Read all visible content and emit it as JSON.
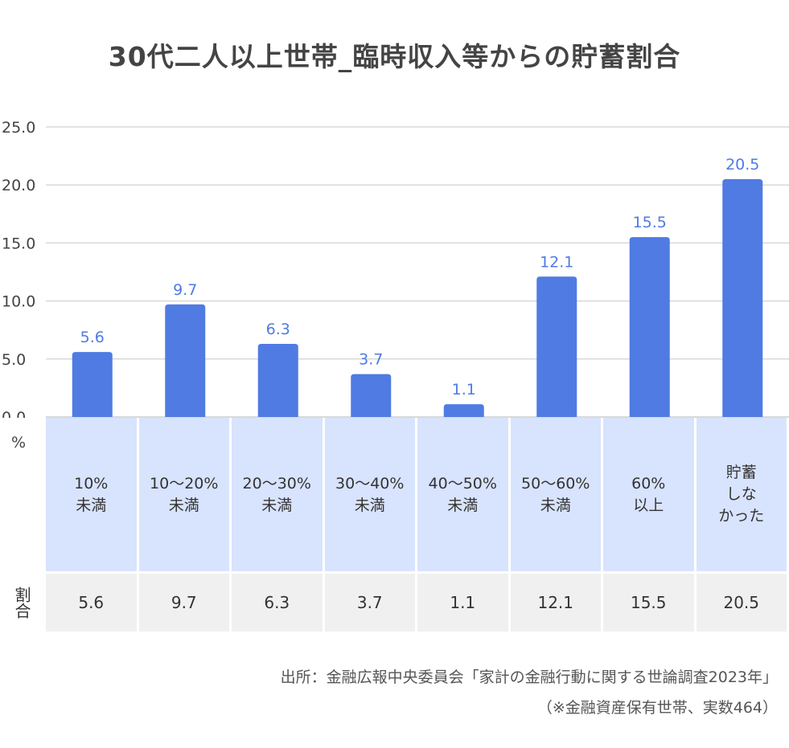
{
  "title": "30代二人以上世帯_臨時収入等からの貯蓄割合",
  "chart_data": {
    "type": "bar",
    "title": "30代二人以上世帯_臨時収入等からの貯蓄割合",
    "categories": [
      "10%\n未満",
      "10〜20%\n未満",
      "20〜30%\n未満",
      "30〜40%\n未満",
      "40〜50%\n未満",
      "50〜60%\n未満",
      "60%\n以上",
      "貯蓄\nしな\nかった"
    ],
    "values": [
      5.6,
      9.7,
      6.3,
      3.7,
      1.1,
      12.1,
      15.5,
      20.5
    ],
    "value_labels": [
      "5.6",
      "9.7",
      "6.3",
      "3.7",
      "1.1",
      "12.1",
      "15.5",
      "20.5"
    ],
    "ylim": [
      0,
      25
    ],
    "yticks": [
      "0.0",
      "5.0",
      "10.0",
      "15.0",
      "20.0",
      "25.0"
    ],
    "ylabel": "%",
    "grid": true,
    "bar_color": "#4f7be3"
  },
  "table": {
    "row_label": "割合",
    "values": [
      "5.6",
      "9.7",
      "6.3",
      "3.7",
      "1.1",
      "12.1",
      "15.5",
      "20.5"
    ]
  },
  "source": {
    "line1": "出所：金融広報中央委員会「家計の金融行動に関する世論調査2023年」",
    "line2": "（※金融資産保有世帯、実数464）"
  },
  "colors": {
    "bar": "#4f7be3",
    "category_bg": "#d8e3fd",
    "table_bg": "#f0f0f0",
    "grid": "#d9d9d9"
  }
}
